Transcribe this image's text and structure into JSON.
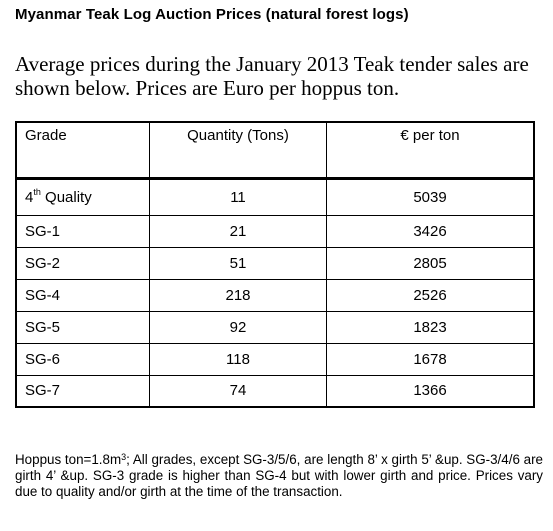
{
  "heading": "Myanmar Teak Log Auction Prices (natural forest logs)",
  "intro": "Average prices during the January 2013 Teak tender sales are shown below. Prices are Euro per hoppus ton.",
  "table": {
    "headers": [
      "Grade",
      "Quantity (Tons)",
      "€ per ton"
    ],
    "first_row": {
      "grade_prefix": "4",
      "grade_sup": "th",
      "grade_suffix": " Quality",
      "quantity": "11",
      "price": "5039"
    },
    "rows": [
      {
        "grade": "SG-1",
        "quantity": "21",
        "price": "3426"
      },
      {
        "grade": "SG-2",
        "quantity": "51",
        "price": "2805"
      },
      {
        "grade": "SG-4",
        "quantity": "218",
        "price": "2526"
      },
      {
        "grade": "SG-5",
        "quantity": "92",
        "price": "1823"
      },
      {
        "grade": "SG-6",
        "quantity": "118",
        "price": "1678"
      },
      {
        "grade": "SG-7",
        "quantity": "74",
        "price": "1366"
      }
    ]
  },
  "note": {
    "part1": "Hoppus ton=1.8m",
    "sup": "3",
    "part2": "; All grades, except SG-3/5/6, are length 8’ x girth 5’ &up. SG-3/4/6 are girth 4’ &up. SG-3 grade is higher than SG-4 but with lower girth and price. Prices vary due to quality and/or girth at the time of the transaction."
  }
}
